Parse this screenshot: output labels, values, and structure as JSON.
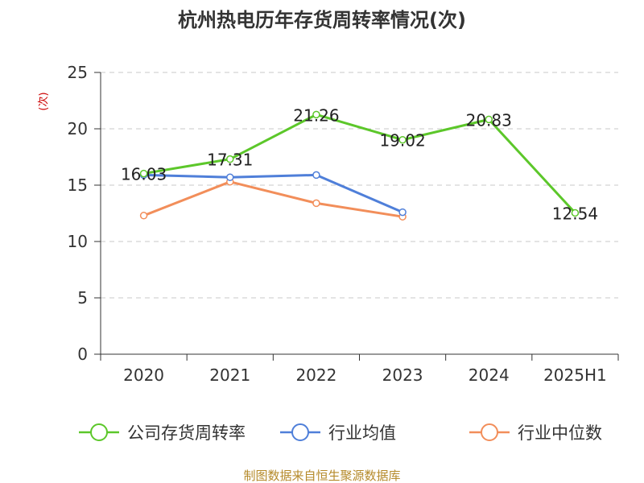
{
  "chart_data": {
    "type": "line",
    "title": "杭州热电历年存货周转率情况(次)",
    "ylabel": "(次)",
    "xlabel": "",
    "categories": [
      "2020",
      "2021",
      "2022",
      "2023",
      "2024",
      "2025H1"
    ],
    "ylim": [
      0,
      25
    ],
    "yticks": [
      0,
      5,
      10,
      15,
      20,
      25
    ],
    "grid": true,
    "legend_position": "bottom",
    "series": [
      {
        "name": "公司存货周转率",
        "color": "#5cc72a",
        "values": [
          16.03,
          17.31,
          21.26,
          19.02,
          20.83,
          12.54
        ],
        "labels": [
          "16.03",
          "17.31",
          "21.26",
          "19.02",
          "20.83",
          "12.54"
        ]
      },
      {
        "name": "行业均值",
        "color": "#4f7fd9",
        "values": [
          15.9,
          15.7,
          15.9,
          12.6,
          null,
          null
        ]
      },
      {
        "name": "行业中位数",
        "color": "#f28e5a",
        "values": [
          12.3,
          15.3,
          13.4,
          12.2,
          null,
          null
        ]
      }
    ],
    "source": "制图数据来自恒生聚源数据库"
  }
}
